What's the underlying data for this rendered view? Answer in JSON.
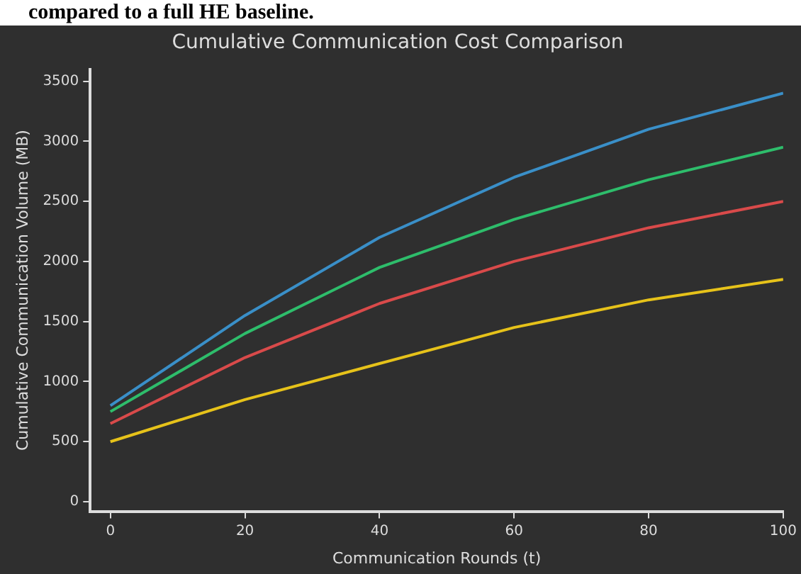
{
  "chart_data": {
    "type": "line",
    "title": "Cumulative Communication Cost Comparison",
    "xlabel": "Communication Rounds (t)",
    "ylabel": "Cumulative Communication Volume (MB)",
    "annotations": [
      "compared to a full HE baseline."
    ],
    "x": [
      0,
      20,
      40,
      60,
      80,
      100
    ],
    "xlim": [
      -3,
      100
    ],
    "xticks": [
      0,
      20,
      40,
      60,
      80,
      100
    ],
    "ylim": [
      -80,
      3600
    ],
    "yticks": [
      0,
      500,
      1000,
      1500,
      2000,
      2500,
      3000,
      3500
    ],
    "grid": false,
    "legend": false,
    "marker": "none",
    "line_style": "solid",
    "series": [
      {
        "color": "#3a8fc8",
        "values": [
          800,
          1550,
          2200,
          2700,
          3100,
          3400
        ]
      },
      {
        "color": "#2ebd6b",
        "values": [
          750,
          1400,
          1950,
          2350,
          2680,
          2950
        ]
      },
      {
        "color": "#d94a4a",
        "values": [
          650,
          1200,
          1650,
          2000,
          2280,
          2500
        ]
      },
      {
        "color": "#e6c21a",
        "values": [
          500,
          850,
          1150,
          1450,
          1680,
          1850
        ]
      }
    ]
  }
}
